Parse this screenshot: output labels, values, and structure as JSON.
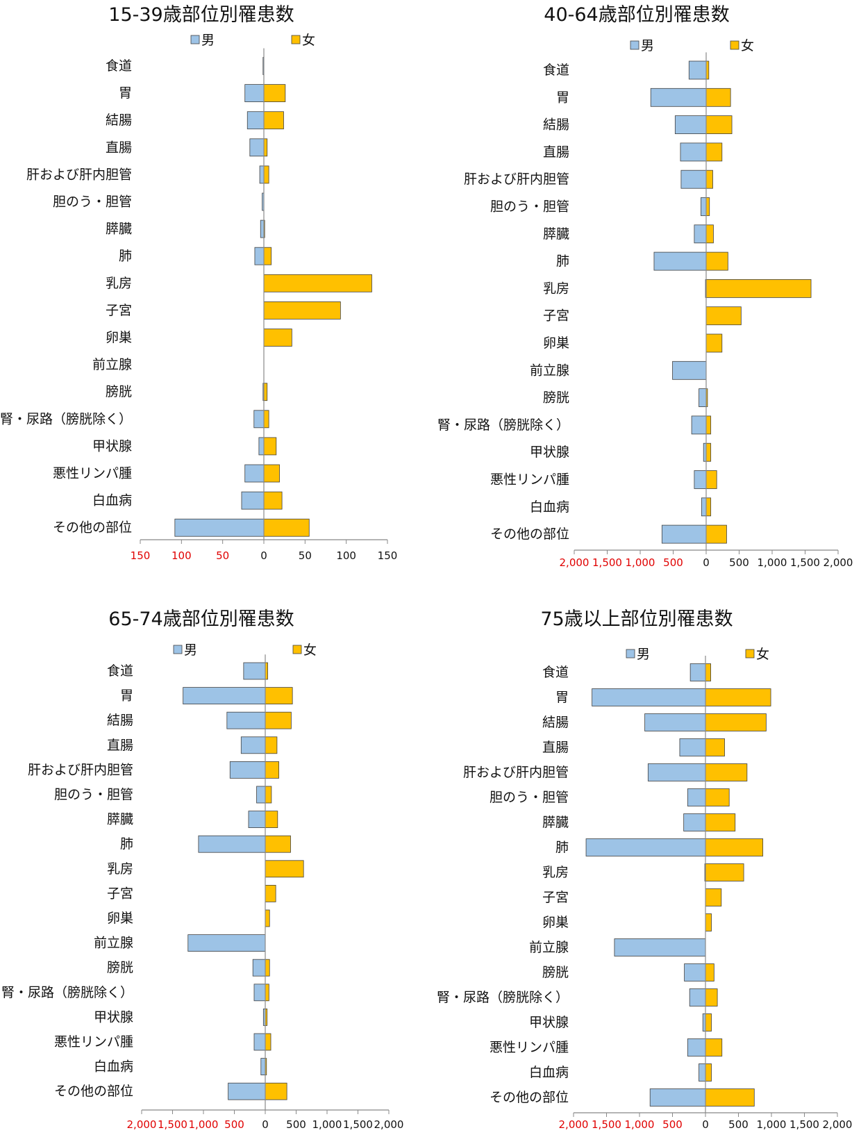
{
  "legend": {
    "male": "男",
    "female": "女"
  },
  "colors": {
    "male": "#9dc3e6",
    "female": "#ffc000",
    "stroke": "#404040",
    "axis": "#888888",
    "left_tick": "#e00000"
  },
  "chart_data": [
    {
      "type": "bar",
      "title": "15-39歳部位別罹患数",
      "categories": [
        "食道",
        "胃",
        "結腸",
        "直腸",
        "肝および肝内胆管",
        "胆のう・胆管",
        "膵臓",
        "肺",
        "乳房",
        "子宮",
        "卵巣",
        "前立腺",
        "膀胱",
        "腎・尿路（膀胱除く）",
        "甲状腺",
        "悪性リンパ腫",
        "白血病",
        "その他の部位"
      ],
      "series": [
        {
          "name": "男",
          "values": [
            1,
            23,
            20,
            17,
            5,
            2,
            4,
            11,
            0,
            0,
            0,
            0,
            1,
            12,
            6,
            23,
            27,
            108
          ]
        },
        {
          "name": "女",
          "values": [
            0,
            26,
            24,
            4,
            6,
            0,
            1,
            9,
            131,
            93,
            34,
            0,
            4,
            6,
            15,
            19,
            22,
            55
          ]
        }
      ],
      "xlim": [
        -150,
        150
      ],
      "tick_labels_left": [
        "150",
        "100",
        "50"
      ],
      "tick_labels_right": [
        "0",
        "50",
        "100",
        "150"
      ]
    },
    {
      "type": "bar",
      "title": "40-64歳部位別罹患数",
      "categories": [
        "食道",
        "胃",
        "結腸",
        "直腸",
        "肝および肝内胆管",
        "胆のう・胆管",
        "膵臓",
        "肺",
        "乳房",
        "子宮",
        "卵巣",
        "前立腺",
        "膀胱",
        "腎・尿路（膀胱除く）",
        "甲状腺",
        "悪性リンパ腫",
        "白血病",
        "その他の部位"
      ],
      "series": [
        {
          "name": "男",
          "values": [
            260,
            840,
            470,
            390,
            380,
            80,
            180,
            790,
            10,
            0,
            0,
            510,
            110,
            220,
            40,
            180,
            70,
            670
          ]
        },
        {
          "name": "女",
          "values": [
            40,
            370,
            390,
            240,
            100,
            50,
            110,
            330,
            1590,
            530,
            240,
            0,
            20,
            70,
            70,
            160,
            70,
            310
          ]
        }
      ],
      "xlim": [
        -2000,
        2000
      ],
      "tick_labels_left": [
        "2,000",
        "1,500",
        "1,000",
        "500"
      ],
      "tick_labels_right": [
        "0",
        "500",
        "1,000",
        "1,500",
        "2,000"
      ]
    },
    {
      "type": "bar",
      "title": "65-74歳部位別罹患数",
      "categories": [
        "食道",
        "胃",
        "結腸",
        "直腸",
        "肝および肝内胆管",
        "胆のう・胆管",
        "膵臓",
        "肺",
        "乳房",
        "子宮",
        "卵巣",
        "前立腺",
        "膀胱",
        "腎・尿路（膀胱除く）",
        "甲状腺",
        "悪性リンパ腫",
        "白血病",
        "その他の部位"
      ],
      "series": [
        {
          "name": "男",
          "values": [
            350,
            1330,
            620,
            390,
            570,
            140,
            270,
            1080,
            0,
            0,
            0,
            1250,
            200,
            180,
            30,
            180,
            70,
            600
          ]
        },
        {
          "name": "女",
          "values": [
            40,
            440,
            420,
            190,
            220,
            100,
            200,
            410,
            620,
            170,
            70,
            0,
            70,
            60,
            30,
            90,
            20,
            350
          ]
        }
      ],
      "xlim": [
        -2000,
        2000
      ],
      "tick_labels_left": [
        "2,000",
        "1,500",
        "1,000",
        "500"
      ],
      "tick_labels_right": [
        "0",
        "500",
        "1,000",
        "1,500",
        "2,000"
      ]
    },
    {
      "type": "bar",
      "title": "75歳以上部位別罹患数",
      "categories": [
        "食道",
        "胃",
        "結腸",
        "直腸",
        "肝および肝内胆管",
        "胆のう・胆管",
        "膵臓",
        "肺",
        "乳房",
        "子宮",
        "卵巣",
        "前立腺",
        "膀胱",
        "腎・尿路（膀胱除く）",
        "甲状腺",
        "悪性リンパ腫",
        "白血病",
        "その他の部位"
      ],
      "series": [
        {
          "name": "男",
          "values": [
            230,
            1720,
            920,
            390,
            870,
            270,
            330,
            1810,
            10,
            0,
            0,
            1380,
            320,
            240,
            40,
            270,
            100,
            840
          ]
        },
        {
          "name": "女",
          "values": [
            80,
            990,
            920,
            290,
            630,
            360,
            450,
            870,
            580,
            240,
            90,
            0,
            130,
            180,
            90,
            250,
            90,
            740
          ]
        }
      ],
      "xlim": [
        -2000,
        2000
      ],
      "tick_labels_left": [
        "2,000",
        "1,500",
        "1,000",
        "500"
      ],
      "tick_labels_right": [
        "0",
        "500",
        "1,000",
        "1,500",
        "2,000"
      ]
    }
  ]
}
